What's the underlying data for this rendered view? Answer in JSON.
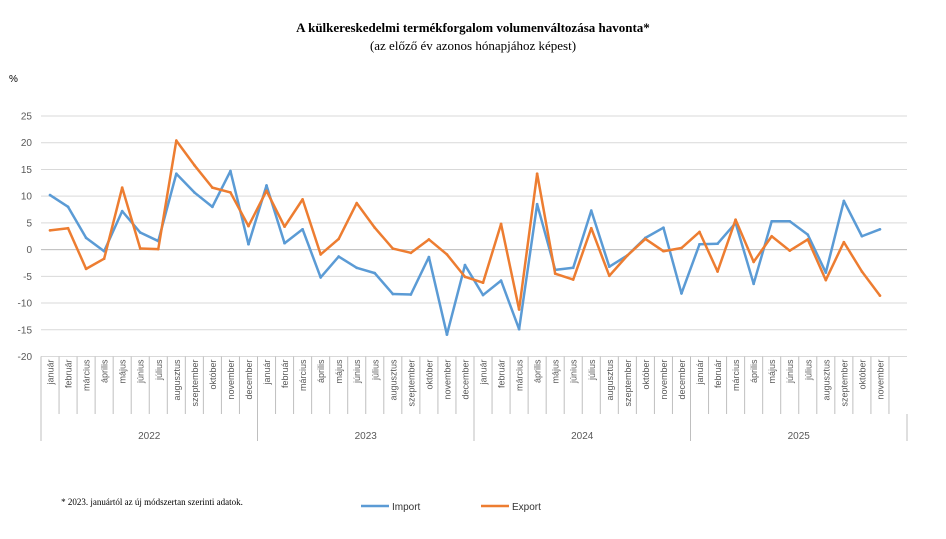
{
  "title": "A külkereskedelmi termékforgalom  volumenváltozása havonta*",
  "subtitle": "(az előző év azonos hónapjához képest)",
  "unit_label": "%",
  "footnote": "* 2023. januártól az új módszertan szerinti adatok.",
  "colors": {
    "import": "#5B9BD5",
    "export": "#ED7D31",
    "grid": "#d9d9d9",
    "axis": "#bfbfbf",
    "text": "#595959"
  },
  "chart_data": {
    "type": "line",
    "title": "A külkereskedelmi termékforgalom  volumenváltozása havonta*",
    "ylabel": "%",
    "ylim": [
      -20,
      25
    ],
    "yticks": [
      -20,
      -15,
      -10,
      -5,
      0,
      5,
      10,
      15,
      20,
      25
    ],
    "grid": true,
    "legend": "bottom",
    "years": [
      {
        "label": "2022",
        "months": [
          "január",
          "február",
          "március",
          "április",
          "május",
          "június",
          "július",
          "augusztus",
          "szeptember",
          "október",
          "november",
          "december"
        ]
      },
      {
        "label": "2023",
        "months": [
          "január",
          "február",
          "március",
          "április",
          "május",
          "június",
          "július",
          "augusztus",
          "szeptember",
          "október",
          "november",
          "december"
        ]
      },
      {
        "label": "2024",
        "months": [
          "január",
          "február",
          "március",
          "április",
          "május",
          "június",
          "július",
          "augusztus",
          "szeptember",
          "október",
          "november",
          "december"
        ]
      },
      {
        "label": "2025",
        "months": [
          "január",
          "február",
          "március",
          "április",
          "május",
          "június",
          "július",
          "augusztus",
          "szeptember",
          "október",
          "november"
        ]
      }
    ],
    "series": [
      {
        "name": "Import",
        "color": "#5B9BD5",
        "values": [
          10.2,
          8.0,
          2.2,
          -0.3,
          7.2,
          3.2,
          1.6,
          14.2,
          10.7,
          8.0,
          14.7,
          1.0,
          12.0,
          1.2,
          3.8,
          -5.2,
          -1.3,
          -3.4,
          -4.4,
          -8.3,
          -8.4,
          -1.4,
          -15.9,
          -2.9,
          -8.5,
          -5.8,
          -14.9,
          8.5,
          -3.8,
          -3.4,
          7.3,
          -3.2,
          -1.1,
          2.2,
          4.1,
          -8.2,
          1.0,
          1.1,
          5.0,
          -6.4,
          5.3,
          5.3,
          2.8,
          -4.3,
          9.1,
          2.5,
          3.8
        ]
      },
      {
        "name": "Export",
        "color": "#ED7D31",
        "values": [
          3.6,
          4.0,
          -3.6,
          -1.7,
          11.6,
          0.2,
          0.1,
          20.4,
          15.8,
          11.6,
          10.7,
          4.4,
          11.0,
          4.3,
          9.4,
          -0.9,
          2.0,
          8.7,
          4.1,
          0.2,
          -0.6,
          1.9,
          -0.9,
          -5.1,
          -6.2,
          4.8,
          -11.2,
          14.2,
          -4.5,
          -5.6,
          4.0,
          -4.9,
          -1.1,
          2.0,
          -0.3,
          0.3,
          3.3,
          -4.1,
          5.6,
          -2.3,
          2.5,
          -0.2,
          1.9,
          -5.7,
          1.4,
          -4.1,
          -8.6
        ]
      }
    ]
  }
}
